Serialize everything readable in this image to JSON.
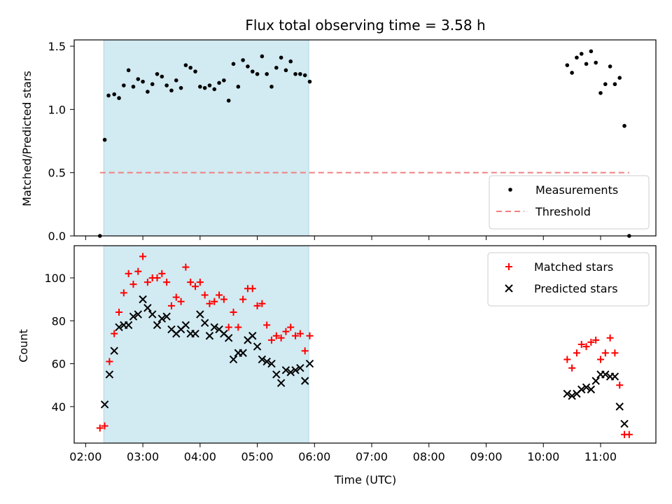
{
  "figure": {
    "title": "Flux total observing time = 3.58 h",
    "x_axis_label": "Time (UTC)",
    "x_tick_labels": [
      "02:00",
      "03:00",
      "04:00",
      "05:00",
      "06:00",
      "07:00",
      "08:00",
      "09:00",
      "10:00",
      "11:00"
    ],
    "highlight_color": "#add8e6"
  },
  "chart_data": [
    {
      "type": "scatter",
      "ylabel": "Matched/Predicted stars",
      "ylim": [
        0,
        1.55
      ],
      "yticks": [
        "0.0",
        "0.5",
        "1.0",
        "1.5"
      ],
      "xlim": [
        "01:48",
        "11:58"
      ],
      "highlight_span": [
        "02:19",
        "05:54"
      ],
      "grid": false,
      "legend_position": "lower right",
      "threshold": {
        "name": "Threshold",
        "value": 0.5,
        "x_range": [
          "02:15",
          "11:30"
        ],
        "color": "#f08080",
        "style": "dashed"
      },
      "series": [
        {
          "name": "Measurements",
          "color": "#000000",
          "points": [
            [
              "02:15",
              0.0
            ],
            [
              "02:20",
              0.76
            ],
            [
              "02:24",
              1.11
            ],
            [
              "02:30",
              1.12
            ],
            [
              "02:35",
              1.09
            ],
            [
              "02:40",
              1.19
            ],
            [
              "02:45",
              1.31
            ],
            [
              "02:50",
              1.18
            ],
            [
              "02:55",
              1.24
            ],
            [
              "03:00",
              1.22
            ],
            [
              "03:05",
              1.14
            ],
            [
              "03:10",
              1.2
            ],
            [
              "03:15",
              1.28
            ],
            [
              "03:20",
              1.26
            ],
            [
              "03:25",
              1.19
            ],
            [
              "03:30",
              1.15
            ],
            [
              "03:35",
              1.23
            ],
            [
              "03:40",
              1.17
            ],
            [
              "03:45",
              1.35
            ],
            [
              "03:50",
              1.33
            ],
            [
              "03:55",
              1.3
            ],
            [
              "04:00",
              1.18
            ],
            [
              "04:05",
              1.17
            ],
            [
              "04:10",
              1.19
            ],
            [
              "04:15",
              1.16
            ],
            [
              "04:20",
              1.21
            ],
            [
              "04:25",
              1.23
            ],
            [
              "04:30",
              1.07
            ],
            [
              "04:35",
              1.36
            ],
            [
              "04:40",
              1.18
            ],
            [
              "04:45",
              1.39
            ],
            [
              "04:50",
              1.34
            ],
            [
              "04:55",
              1.3
            ],
            [
              "05:00",
              1.28
            ],
            [
              "05:05",
              1.42
            ],
            [
              "05:10",
              1.28
            ],
            [
              "05:15",
              1.18
            ],
            [
              "05:20",
              1.33
            ],
            [
              "05:25",
              1.41
            ],
            [
              "05:30",
              1.31
            ],
            [
              "05:35",
              1.38
            ],
            [
              "05:40",
              1.28
            ],
            [
              "05:45",
              1.28
            ],
            [
              "05:50",
              1.27
            ],
            [
              "05:55",
              1.22
            ],
            [
              "10:25",
              1.35
            ],
            [
              "10:30",
              1.29
            ],
            [
              "10:35",
              1.41
            ],
            [
              "10:40",
              1.44
            ],
            [
              "10:45",
              1.36
            ],
            [
              "10:50",
              1.46
            ],
            [
              "10:55",
              1.37
            ],
            [
              "11:00",
              1.13
            ],
            [
              "11:05",
              1.2
            ],
            [
              "11:10",
              1.34
            ],
            [
              "11:15",
              1.2
            ],
            [
              "11:20",
              1.25
            ],
            [
              "11:25",
              0.87
            ],
            [
              "11:30",
              0.0
            ]
          ]
        }
      ]
    },
    {
      "type": "scatter",
      "ylabel": "Count",
      "ylim": [
        23,
        115
      ],
      "yticks": [
        "40",
        "60",
        "80",
        "100"
      ],
      "xlim": [
        "01:48",
        "11:58"
      ],
      "highlight_span": [
        "02:19",
        "05:54"
      ],
      "grid": false,
      "legend_position": "upper right",
      "series": [
        {
          "name": "Matched stars",
          "marker": "plus",
          "color": "#ff0000",
          "points": [
            [
              "02:15",
              30
            ],
            [
              "02:20",
              31
            ],
            [
              "02:25",
              61
            ],
            [
              "02:30",
              74
            ],
            [
              "02:35",
              84
            ],
            [
              "02:40",
              93
            ],
            [
              "02:45",
              102
            ],
            [
              "02:50",
              97
            ],
            [
              "02:55",
              103
            ],
            [
              "03:00",
              110
            ],
            [
              "03:05",
              98
            ],
            [
              "03:10",
              100
            ],
            [
              "03:15",
              100
            ],
            [
              "03:20",
              102
            ],
            [
              "03:25",
              98
            ],
            [
              "03:30",
              87
            ],
            [
              "03:35",
              91
            ],
            [
              "03:40",
              89
            ],
            [
              "03:45",
              105
            ],
            [
              "03:50",
              98
            ],
            [
              "03:55",
              96
            ],
            [
              "04:00",
              98
            ],
            [
              "04:05",
              92
            ],
            [
              "04:10",
              88
            ],
            [
              "04:15",
              89
            ],
            [
              "04:20",
              92
            ],
            [
              "04:25",
              90
            ],
            [
              "04:30",
              77
            ],
            [
              "04:35",
              84
            ],
            [
              "04:40",
              77
            ],
            [
              "04:45",
              90
            ],
            [
              "04:50",
              95
            ],
            [
              "04:55",
              95
            ],
            [
              "05:00",
              87
            ],
            [
              "05:05",
              88
            ],
            [
              "05:10",
              78
            ],
            [
              "05:15",
              71
            ],
            [
              "05:20",
              73
            ],
            [
              "05:25",
              72
            ],
            [
              "05:30",
              75
            ],
            [
              "05:35",
              77
            ],
            [
              "05:40",
              73
            ],
            [
              "05:45",
              74
            ],
            [
              "05:50",
              66
            ],
            [
              "05:55",
              73
            ],
            [
              "10:25",
              62
            ],
            [
              "10:30",
              58
            ],
            [
              "10:35",
              65
            ],
            [
              "10:40",
              69
            ],
            [
              "10:45",
              68
            ],
            [
              "10:50",
              70
            ],
            [
              "10:55",
              71
            ],
            [
              "11:00",
              62
            ],
            [
              "11:05",
              65
            ],
            [
              "11:10",
              72
            ],
            [
              "11:15",
              65
            ],
            [
              "11:20",
              50
            ],
            [
              "11:25",
              27
            ],
            [
              "11:30",
              27
            ]
          ]
        },
        {
          "name": "Predicted stars",
          "marker": "x",
          "color": "#000000",
          "points": [
            [
              "02:20",
              41
            ],
            [
              "02:25",
              55
            ],
            [
              "02:30",
              66
            ],
            [
              "02:35",
              77
            ],
            [
              "02:40",
              78
            ],
            [
              "02:45",
              78
            ],
            [
              "02:50",
              82
            ],
            [
              "02:55",
              83
            ],
            [
              "03:00",
              90
            ],
            [
              "03:05",
              86
            ],
            [
              "03:10",
              83
            ],
            [
              "03:15",
              78
            ],
            [
              "03:20",
              81
            ],
            [
              "03:25",
              82
            ],
            [
              "03:30",
              76
            ],
            [
              "03:35",
              74
            ],
            [
              "03:40",
              76
            ],
            [
              "03:45",
              78
            ],
            [
              "03:50",
              74
            ],
            [
              "03:55",
              74
            ],
            [
              "04:00",
              83
            ],
            [
              "04:05",
              79
            ],
            [
              "04:10",
              73
            ],
            [
              "04:15",
              77
            ],
            [
              "04:20",
              76
            ],
            [
              "04:25",
              74
            ],
            [
              "04:30",
              72
            ],
            [
              "04:35",
              62
            ],
            [
              "04:40",
              65
            ],
            [
              "04:45",
              65
            ],
            [
              "04:50",
              71
            ],
            [
              "04:55",
              73
            ],
            [
              "05:00",
              68
            ],
            [
              "05:05",
              62
            ],
            [
              "05:10",
              61
            ],
            [
              "05:15",
              60
            ],
            [
              "05:20",
              55
            ],
            [
              "05:25",
              51
            ],
            [
              "05:30",
              57
            ],
            [
              "05:35",
              56
            ],
            [
              "05:40",
              57
            ],
            [
              "05:45",
              58
            ],
            [
              "05:50",
              52
            ],
            [
              "05:55",
              60
            ],
            [
              "10:25",
              46
            ],
            [
              "10:30",
              45
            ],
            [
              "10:35",
              46
            ],
            [
              "10:40",
              48
            ],
            [
              "10:45",
              49
            ],
            [
              "10:50",
              48
            ],
            [
              "10:55",
              52
            ],
            [
              "11:00",
              55
            ],
            [
              "11:05",
              55
            ],
            [
              "11:10",
              54
            ],
            [
              "11:15",
              54
            ],
            [
              "11:20",
              40
            ],
            [
              "11:25",
              32
            ]
          ]
        }
      ]
    }
  ]
}
